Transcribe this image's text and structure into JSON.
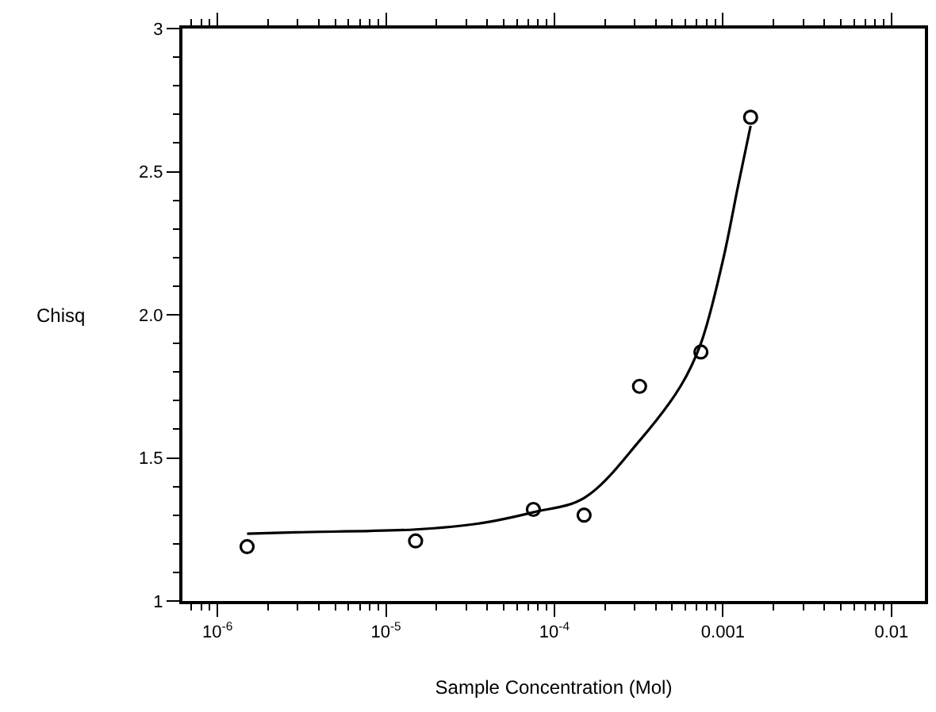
{
  "chart_data": {
    "type": "scatter",
    "xlabel": "Sample Concentration (Mol)",
    "ylabel": "Chisq",
    "log": "x",
    "marker": "circle",
    "xlim": [
      6.2e-07,
      0.0158
    ],
    "xticks": [
      {
        "value": 1e-06,
        "label": "10$^{-6}$"
      },
      {
        "value": 1e-05,
        "label": "10$^{-5}$"
      },
      {
        "value": 0.0001,
        "label": "10$^{-4}$"
      },
      0.001,
      0.01
    ],
    "ylim": [
      1,
      3
    ],
    "yticks": [
      1,
      1.5,
      {
        "value": 2,
        "label": "2.0"
      },
      2.5,
      3
    ],
    "series": [
      {
        "color": "#000000",
        "x": [
          1.5e-06,
          1.5e-05,
          7.5e-05,
          0.00015,
          0.00032,
          0.00074,
          0.00146
        ],
        "values": [
          1.19,
          1.21,
          1.32,
          1.3,
          1.75,
          1.87,
          2.69
        ]
      },
      {
        "type": "line",
        "color": "#000000",
        "marker": "none",
        "line_style": "solid",
        "x": [
          1.5e-06,
          2.9e-06,
          1.5e-05,
          3.5e-05,
          7.5e-05,
          0.00015,
          0.00032,
          0.00056,
          0.00074,
          0.001,
          0.00123,
          0.00146
        ],
        "values": [
          1.235,
          1.24,
          1.25,
          1.27,
          1.31,
          1.36,
          1.56,
          1.75,
          1.9,
          2.19,
          2.45,
          2.66
        ]
      }
    ]
  }
}
